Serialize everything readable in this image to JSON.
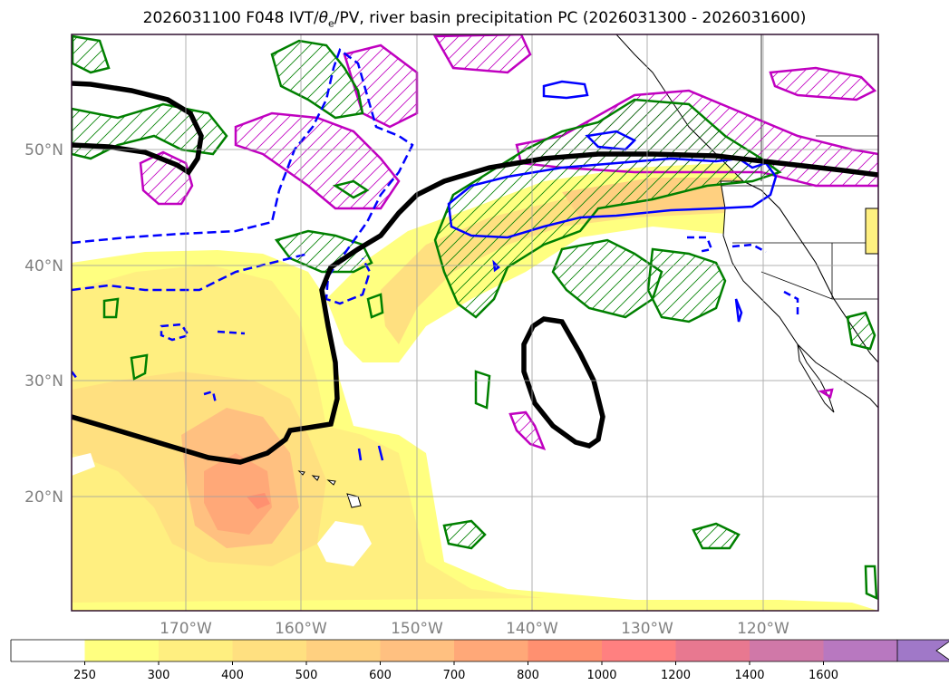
{
  "title": {
    "prefix": "2026031100 F048 IVT/",
    "theta": "θ",
    "theta_sub": "e",
    "suffix": "/PV, river basin precipitation PC (2026031300 - 2026031600)"
  },
  "map": {
    "lat_labels": [
      "50°N",
      "40°N",
      "30°N",
      "20°N"
    ],
    "lon_labels": [
      "170°W",
      "160°W",
      "150°W",
      "140°W",
      "130°W",
      "120°W"
    ]
  },
  "colorbar": {
    "levels": [
      "250",
      "300",
      "400",
      "500",
      "600",
      "700",
      "800",
      "1000",
      "1200",
      "1400",
      "1600"
    ],
    "colors": [
      "#ffffff",
      "#ffff80",
      "#ffef80",
      "#ffe080",
      "#ffd080",
      "#ffc080",
      "#ffa878",
      "#ff9070",
      "#ff8080",
      "#e87890",
      "#d078a8",
      "#b878c0",
      "#a078c8"
    ]
  },
  "colors": {
    "green_contour": "#008000",
    "magenta_contour": "#c000c0",
    "blue_contour": "#0000ff",
    "black_contour": "#000000",
    "coastline": "#000000"
  }
}
